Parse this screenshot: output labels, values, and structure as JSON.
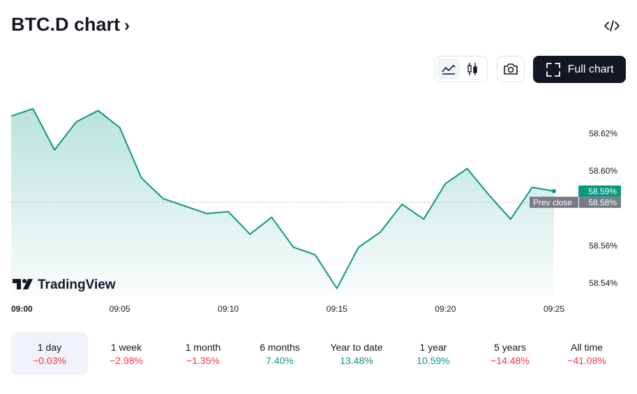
{
  "header": {
    "title": "BTC.D chart",
    "title_chevron": "›",
    "embed_icon": "code-icon"
  },
  "toolbar": {
    "line_style_icon": "area-line-icon",
    "candle_style_icon": "candlestick-icon",
    "snapshot_icon": "camera-icon",
    "full_chart_icon": "fullscreen-icon",
    "full_chart_label": "Full chart"
  },
  "colors": {
    "line": "#089981",
    "negative": "#f23645",
    "positive": "#089981",
    "prev_close_tag": "#787b86",
    "text": "#131722",
    "muted": "#6a6d78"
  },
  "chart_data": {
    "type": "area",
    "x_ticks": [
      "09:00",
      "09:05",
      "09:10",
      "09:15",
      "09:20",
      "09:25"
    ],
    "x_tick_minutes": [
      0,
      5,
      10,
      15,
      20,
      25
    ],
    "y_ticks": [
      "58.62%",
      "58.60%",
      "58.56%",
      "58.54%"
    ],
    "y_tick_values": [
      58.62,
      58.6,
      58.56,
      58.54
    ],
    "ylim": [
      58.5335,
      58.6393
    ],
    "xlim": [
      0,
      25
    ],
    "series": [
      {
        "x": [
          0,
          1,
          2,
          3,
          4,
          5,
          6,
          7,
          8,
          9,
          10,
          11,
          12,
          13,
          14,
          15,
          16,
          17,
          18,
          19,
          20,
          21,
          22,
          23,
          24,
          25
        ],
        "values": [
          58.629,
          58.633,
          58.611,
          58.626,
          58.632,
          58.623,
          58.596,
          58.585,
          58.581,
          58.577,
          58.578,
          58.566,
          58.575,
          58.559,
          58.555,
          58.537,
          58.559,
          58.567,
          58.582,
          58.574,
          58.593,
          58.601,
          58.587,
          58.574,
          58.591,
          58.589
        ]
      }
    ],
    "last_value_label": "58.59%",
    "prev_close": {
      "label": "Prev close",
      "value_label": "58.58%",
      "value": 58.583
    },
    "watermark": "TradingView"
  },
  "periods": [
    {
      "label": "1 day",
      "change": "−0.03%",
      "dir": "neg",
      "active": true
    },
    {
      "label": "1 week",
      "change": "−2.98%",
      "dir": "neg",
      "active": false
    },
    {
      "label": "1 month",
      "change": "−1.35%",
      "dir": "neg",
      "active": false
    },
    {
      "label": "6 months",
      "change": "7.40%",
      "dir": "pos",
      "active": false
    },
    {
      "label": "Year to date",
      "change": "13.48%",
      "dir": "pos",
      "active": false
    },
    {
      "label": "1 year",
      "change": "10.59%",
      "dir": "pos",
      "active": false
    },
    {
      "label": "5 years",
      "change": "−14.48%",
      "dir": "neg",
      "active": false
    },
    {
      "label": "All time",
      "change": "−41.08%",
      "dir": "neg",
      "active": false
    }
  ]
}
